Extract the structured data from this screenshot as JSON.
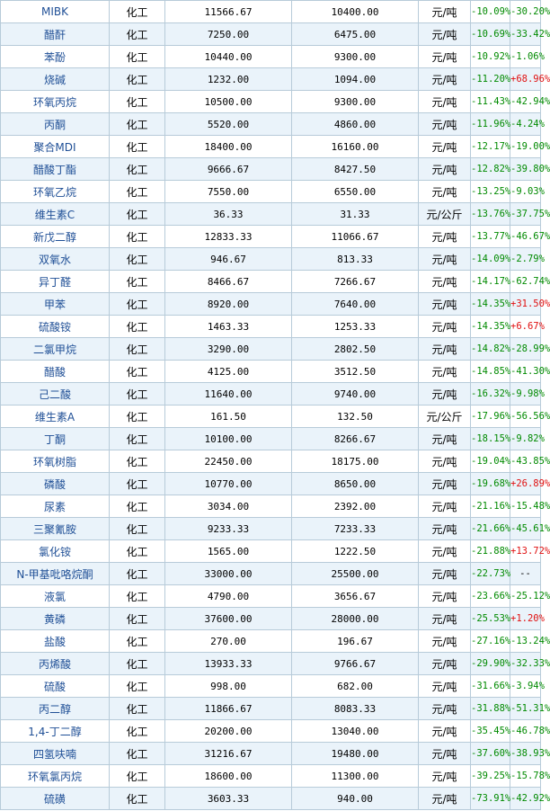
{
  "colors": {
    "name_text": "#1f4f96",
    "positive": "#e01010",
    "negative": "#008a00",
    "grid": "#b7cbd9",
    "alt_row": "#eaf3fa"
  },
  "rows": [
    {
      "name": "MIBK",
      "category": "化工",
      "price_a": "11566.67",
      "price_b": "10400.00",
      "unit": "元/吨",
      "change_a": "-10.09%",
      "change_b": "-30.20%",
      "change_b_dir": "neg"
    },
    {
      "name": "醋酐",
      "category": "化工",
      "price_a": "7250.00",
      "price_b": "6475.00",
      "unit": "元/吨",
      "change_a": "-10.69%",
      "change_b": "-33.42%",
      "change_b_dir": "neg"
    },
    {
      "name": "苯酚",
      "category": "化工",
      "price_a": "10440.00",
      "price_b": "9300.00",
      "unit": "元/吨",
      "change_a": "-10.92%",
      "change_b": "-1.06%",
      "change_b_dir": "neg"
    },
    {
      "name": "烧碱",
      "category": "化工",
      "price_a": "1232.00",
      "price_b": "1094.00",
      "unit": "元/吨",
      "change_a": "-11.20%",
      "change_b": "+68.96%",
      "change_b_dir": "pos"
    },
    {
      "name": "环氧丙烷",
      "category": "化工",
      "price_a": "10500.00",
      "price_b": "9300.00",
      "unit": "元/吨",
      "change_a": "-11.43%",
      "change_b": "-42.94%",
      "change_b_dir": "neg"
    },
    {
      "name": "丙酮",
      "category": "化工",
      "price_a": "5520.00",
      "price_b": "4860.00",
      "unit": "元/吨",
      "change_a": "-11.96%",
      "change_b": "-4.24%",
      "change_b_dir": "neg"
    },
    {
      "name": "聚合MDI",
      "category": "化工",
      "price_a": "18400.00",
      "price_b": "16160.00",
      "unit": "元/吨",
      "change_a": "-12.17%",
      "change_b": "-19.00%",
      "change_b_dir": "neg"
    },
    {
      "name": "醋酸丁酯",
      "category": "化工",
      "price_a": "9666.67",
      "price_b": "8427.50",
      "unit": "元/吨",
      "change_a": "-12.82%",
      "change_b": "-39.80%",
      "change_b_dir": "neg"
    },
    {
      "name": "环氧乙烷",
      "category": "化工",
      "price_a": "7550.00",
      "price_b": "6550.00",
      "unit": "元/吨",
      "change_a": "-13.25%",
      "change_b": "-9.03%",
      "change_b_dir": "neg"
    },
    {
      "name": "维生素C",
      "category": "化工",
      "price_a": "36.33",
      "price_b": "31.33",
      "unit": "元/公斤",
      "change_a": "-13.76%",
      "change_b": "-37.75%",
      "change_b_dir": "neg"
    },
    {
      "name": "新戊二醇",
      "category": "化工",
      "price_a": "12833.33",
      "price_b": "11066.67",
      "unit": "元/吨",
      "change_a": "-13.77%",
      "change_b": "-46.67%",
      "change_b_dir": "neg"
    },
    {
      "name": "双氧水",
      "category": "化工",
      "price_a": "946.67",
      "price_b": "813.33",
      "unit": "元/吨",
      "change_a": "-14.09%",
      "change_b": "-2.79%",
      "change_b_dir": "neg"
    },
    {
      "name": "异丁醛",
      "category": "化工",
      "price_a": "8466.67",
      "price_b": "7266.67",
      "unit": "元/吨",
      "change_a": "-14.17%",
      "change_b": "-62.74%",
      "change_b_dir": "neg"
    },
    {
      "name": "甲苯",
      "category": "化工",
      "price_a": "8920.00",
      "price_b": "7640.00",
      "unit": "元/吨",
      "change_a": "-14.35%",
      "change_b": "+31.50%",
      "change_b_dir": "pos"
    },
    {
      "name": "硫酸铵",
      "category": "化工",
      "price_a": "1463.33",
      "price_b": "1253.33",
      "unit": "元/吨",
      "change_a": "-14.35%",
      "change_b": "+6.67%",
      "change_b_dir": "pos"
    },
    {
      "name": "二氯甲烷",
      "category": "化工",
      "price_a": "3290.00",
      "price_b": "2802.50",
      "unit": "元/吨",
      "change_a": "-14.82%",
      "change_b": "-28.99%",
      "change_b_dir": "neg"
    },
    {
      "name": "醋酸",
      "category": "化工",
      "price_a": "4125.00",
      "price_b": "3512.50",
      "unit": "元/吨",
      "change_a": "-14.85%",
      "change_b": "-41.30%",
      "change_b_dir": "neg"
    },
    {
      "name": "己二酸",
      "category": "化工",
      "price_a": "11640.00",
      "price_b": "9740.00",
      "unit": "元/吨",
      "change_a": "-16.32%",
      "change_b": "-9.98%",
      "change_b_dir": "neg"
    },
    {
      "name": "维生素A",
      "category": "化工",
      "price_a": "161.50",
      "price_b": "132.50",
      "unit": "元/公斤",
      "change_a": "-17.96%",
      "change_b": "-56.56%",
      "change_b_dir": "neg"
    },
    {
      "name": "丁酮",
      "category": "化工",
      "price_a": "10100.00",
      "price_b": "8266.67",
      "unit": "元/吨",
      "change_a": "-18.15%",
      "change_b": "-9.82%",
      "change_b_dir": "neg"
    },
    {
      "name": "环氧树脂",
      "category": "化工",
      "price_a": "22450.00",
      "price_b": "18175.00",
      "unit": "元/吨",
      "change_a": "-19.04%",
      "change_b": "-43.85%",
      "change_b_dir": "neg"
    },
    {
      "name": "磷酸",
      "category": "化工",
      "price_a": "10770.00",
      "price_b": "8650.00",
      "unit": "元/吨",
      "change_a": "-19.68%",
      "change_b": "+26.89%",
      "change_b_dir": "pos"
    },
    {
      "name": "尿素",
      "category": "化工",
      "price_a": "3034.00",
      "price_b": "2392.00",
      "unit": "元/吨",
      "change_a": "-21.16%",
      "change_b": "-15.48%",
      "change_b_dir": "neg"
    },
    {
      "name": "三聚氰胺",
      "category": "化工",
      "price_a": "9233.33",
      "price_b": "7233.33",
      "unit": "元/吨",
      "change_a": "-21.66%",
      "change_b": "-45.61%",
      "change_b_dir": "neg"
    },
    {
      "name": "氯化铵",
      "category": "化工",
      "price_a": "1565.00",
      "price_b": "1222.50",
      "unit": "元/吨",
      "change_a": "-21.88%",
      "change_b": "+13.72%",
      "change_b_dir": "pos"
    },
    {
      "name": "N-甲基吡咯烷酮",
      "category": "化工",
      "price_a": "33000.00",
      "price_b": "25500.00",
      "unit": "元/吨",
      "change_a": "-22.73%",
      "change_b": "--",
      "change_b_dir": "none"
    },
    {
      "name": "液氯",
      "category": "化工",
      "price_a": "4790.00",
      "price_b": "3656.67",
      "unit": "元/吨",
      "change_a": "-23.66%",
      "change_b": "-25.12%",
      "change_b_dir": "neg"
    },
    {
      "name": "黄磷",
      "category": "化工",
      "price_a": "37600.00",
      "price_b": "28000.00",
      "unit": "元/吨",
      "change_a": "-25.53%",
      "change_b": "+1.20%",
      "change_b_dir": "pos"
    },
    {
      "name": "盐酸",
      "category": "化工",
      "price_a": "270.00",
      "price_b": "196.67",
      "unit": "元/吨",
      "change_a": "-27.16%",
      "change_b": "-13.24%",
      "change_b_dir": "neg"
    },
    {
      "name": "丙烯酸",
      "category": "化工",
      "price_a": "13933.33",
      "price_b": "9766.67",
      "unit": "元/吨",
      "change_a": "-29.90%",
      "change_b": "-32.33%",
      "change_b_dir": "neg"
    },
    {
      "name": "硫酸",
      "category": "化工",
      "price_a": "998.00",
      "price_b": "682.00",
      "unit": "元/吨",
      "change_a": "-31.66%",
      "change_b": "-3.94%",
      "change_b_dir": "neg"
    },
    {
      "name": "丙二醇",
      "category": "化工",
      "price_a": "11866.67",
      "price_b": "8083.33",
      "unit": "元/吨",
      "change_a": "-31.88%",
      "change_b": "-51.31%",
      "change_b_dir": "neg"
    },
    {
      "name": "1,4-丁二醇",
      "category": "化工",
      "price_a": "20200.00",
      "price_b": "13040.00",
      "unit": "元/吨",
      "change_a": "-35.45%",
      "change_b": "-46.78%",
      "change_b_dir": "neg"
    },
    {
      "name": "四氢呋喃",
      "category": "化工",
      "price_a": "31216.67",
      "price_b": "19480.00",
      "unit": "元/吨",
      "change_a": "-37.60%",
      "change_b": "-38.93%",
      "change_b_dir": "neg"
    },
    {
      "name": "环氧氯丙烷",
      "category": "化工",
      "price_a": "18600.00",
      "price_b": "11300.00",
      "unit": "元/吨",
      "change_a": "-39.25%",
      "change_b": "-15.78%",
      "change_b_dir": "neg"
    },
    {
      "name": "硫磺",
      "category": "化工",
      "price_a": "3603.33",
      "price_b": "940.00",
      "unit": "元/吨",
      "change_a": "-73.91%",
      "change_b": "-42.92%",
      "change_b_dir": "neg"
    }
  ]
}
